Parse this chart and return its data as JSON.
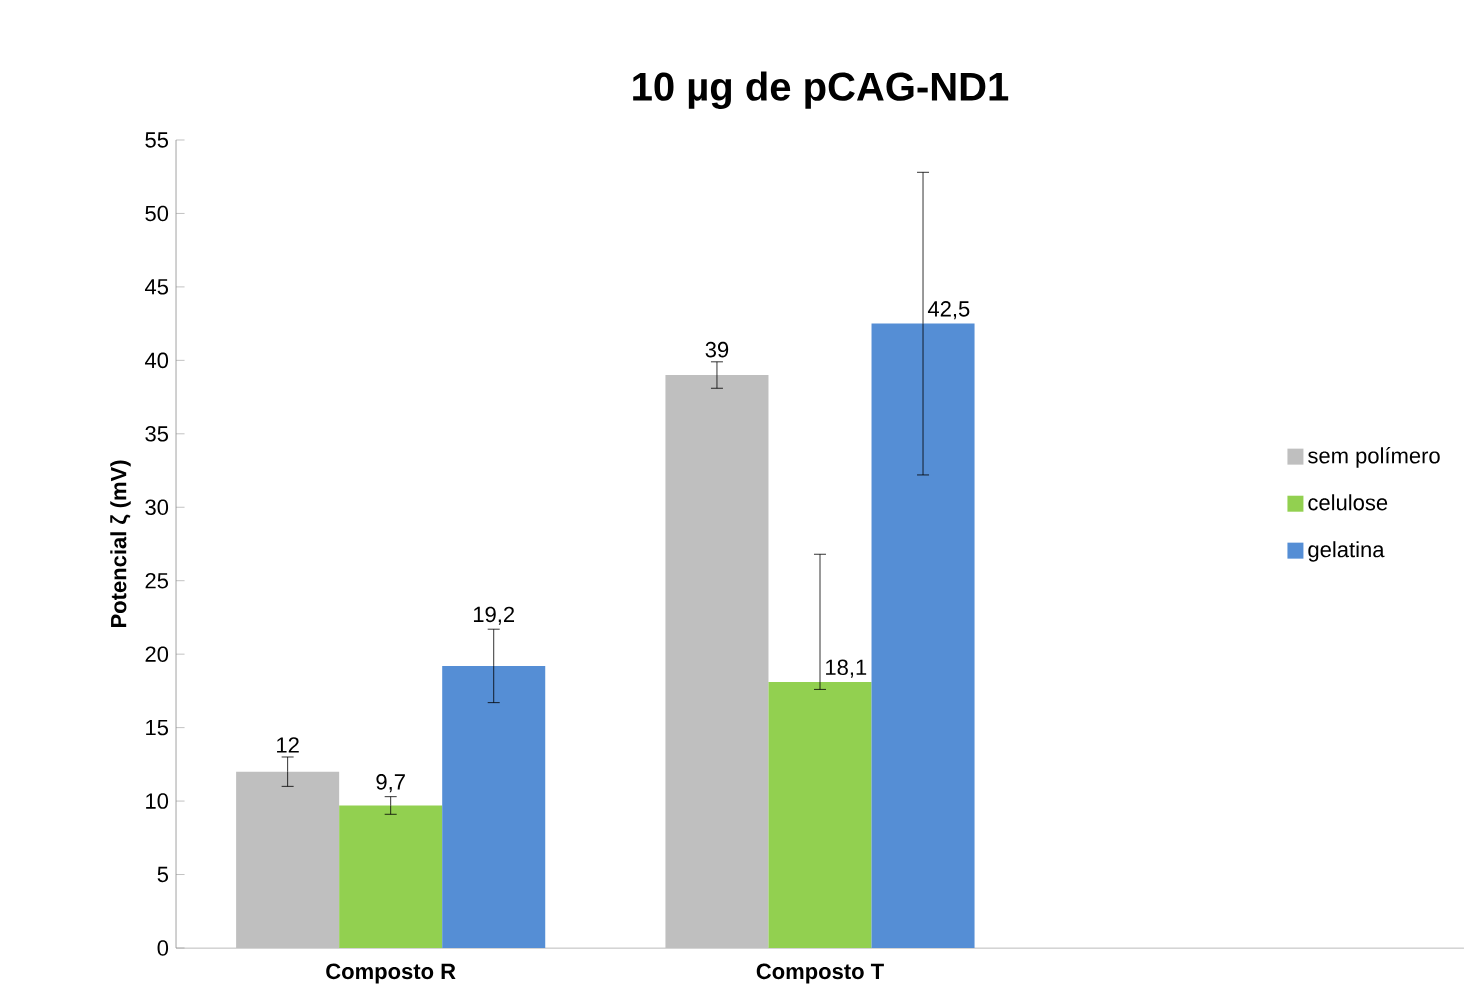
{
  "chart_data": {
    "type": "bar",
    "title": "10 µg de pCAG-ND1",
    "ylabel": "Potencial ζ (mV)",
    "categories": [
      "Composto R",
      "Composto T",
      null
    ],
    "series": [
      {
        "name": "sem polímero",
        "color": "#bfbfbf",
        "values": [
          12,
          39,
          null
        ],
        "errors": [
          1,
          0.9,
          null
        ],
        "value_labels": [
          "12",
          "39",
          null
        ]
      },
      {
        "name": "celulose",
        "color": "#92d050",
        "values": [
          9.7,
          18.1,
          null
        ],
        "errors": [
          0.6,
          [
            17.6,
            26.8
          ],
          null
        ],
        "value_labels": [
          "9,7",
          "18,1",
          null
        ]
      },
      {
        "name": "gelatina",
        "color": "#558ed5",
        "values": [
          19.2,
          42.5,
          null
        ],
        "errors": [
          2.5,
          10.3,
          null
        ],
        "value_labels": [
          "19,2",
          "42,5",
          null
        ]
      }
    ],
    "ylim": [
      0,
      55
    ],
    "yticks": [
      0,
      5,
      10,
      15,
      20,
      25,
      30,
      35,
      40,
      45,
      50,
      55
    ],
    "grid": false,
    "legend": "right"
  }
}
